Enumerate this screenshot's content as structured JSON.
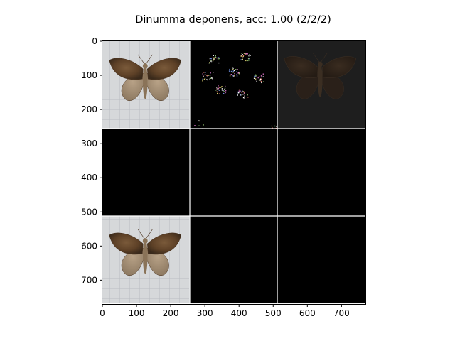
{
  "chart_data": {
    "type": "image-grid",
    "title": "Dinumma deponens, acc: 1.00 (2/2/2)",
    "xlim": [
      0,
      770
    ],
    "ylim": [
      770,
      0
    ],
    "xticks": [
      0,
      100,
      200,
      300,
      400,
      500,
      600,
      700
    ],
    "yticks": [
      0,
      100,
      200,
      300,
      400,
      500,
      600,
      700
    ],
    "grid": {
      "rows": 3,
      "cols": 3,
      "tile_size": 256,
      "separator_color": "#ffffff"
    },
    "tiles": [
      {
        "row": 0,
        "col": 0,
        "content": "moth-photo",
        "background": "#d9d9d9"
      },
      {
        "row": 0,
        "col": 1,
        "content": "saliency-sparse",
        "background": "#000000"
      },
      {
        "row": 0,
        "col": 2,
        "content": "moth-overlay-dark",
        "background": "#1e1e1e"
      },
      {
        "row": 1,
        "col": 0,
        "content": "blank",
        "background": "#000000"
      },
      {
        "row": 1,
        "col": 1,
        "content": "blank",
        "background": "#000000"
      },
      {
        "row": 1,
        "col": 2,
        "content": "blank",
        "background": "#000000"
      },
      {
        "row": 2,
        "col": 0,
        "content": "moth-photo",
        "background": "#d9d9d9"
      },
      {
        "row": 2,
        "col": 1,
        "content": "blank",
        "background": "#000000"
      },
      {
        "row": 2,
        "col": 2,
        "content": "blank",
        "background": "#000000"
      }
    ]
  }
}
